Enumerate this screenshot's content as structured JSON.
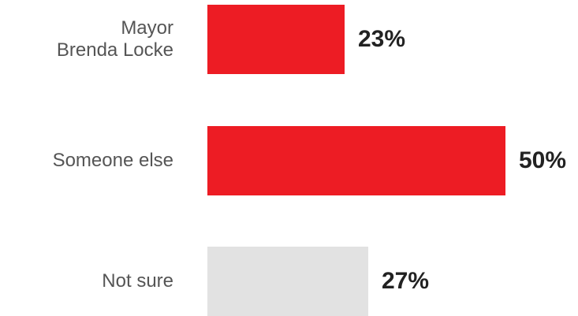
{
  "chart_data": {
    "type": "bar",
    "orientation": "horizontal",
    "categories": [
      "Mayor\nBrenda Locke",
      "Someone else",
      "Not sure"
    ],
    "values": [
      23,
      50,
      27
    ],
    "value_labels": [
      "23%",
      "50%",
      "27%"
    ],
    "bar_colors": [
      "#ed1c24",
      "#ed1c24",
      "#e2e2e2"
    ],
    "title": "",
    "xlabel": "",
    "ylabel": "",
    "xlim": [
      0,
      50
    ],
    "grid": false,
    "legend": "none"
  }
}
